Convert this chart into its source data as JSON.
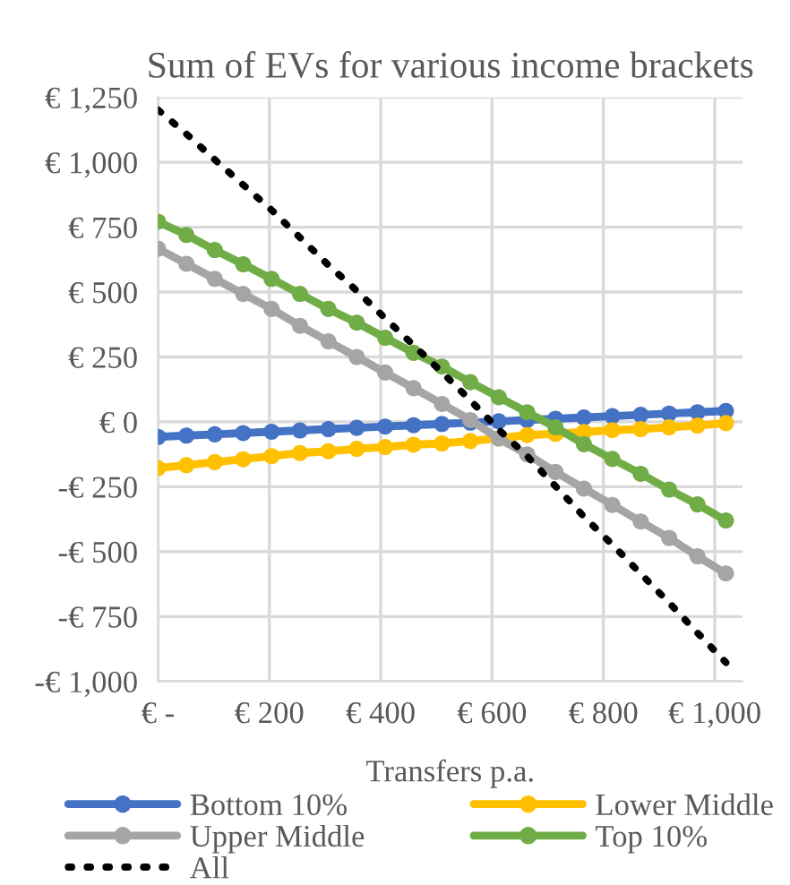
{
  "chart_data": {
    "type": "line",
    "title": "Sum of EVs for various income brackets",
    "xlabel": "Transfers p.a.",
    "x": [
      0,
      51,
      102,
      153,
      204,
      255,
      306,
      357,
      408,
      459,
      510,
      561,
      612,
      663,
      714,
      765,
      816,
      867,
      918,
      969,
      1020
    ],
    "series": [
      {
        "name": "Bottom 10%",
        "color": "#4472c4",
        "values": [
          -58,
          -53,
          -48,
          -43,
          -38,
          -33,
          -28,
          -23,
          -18,
          -13,
          -8,
          -3,
          2,
          7,
          12,
          17,
          22,
          27,
          32,
          37,
          42
        ]
      },
      {
        "name": "Lower Middle",
        "color": "#ffc000",
        "values": [
          -178,
          -167,
          -155,
          -144,
          -132,
          -120,
          -113,
          -104,
          -97,
          -88,
          -83,
          -74,
          -63,
          -51,
          -46,
          -39,
          -32,
          -28,
          -21,
          -14,
          -5
        ]
      },
      {
        "name": "Upper Middle",
        "color": "#a5a5a5",
        "values": [
          667,
          609,
          551,
          493,
          435,
          370,
          310,
          250,
          190,
          130,
          69,
          7,
          -64,
          -125,
          -193,
          -257,
          -320,
          -384,
          -447,
          -518,
          -584
        ]
      },
      {
        "name": "Top 10%",
        "color": "#70ad47",
        "values": [
          771,
          720,
          662,
          607,
          551,
          493,
          435,
          382,
          324,
          266,
          213,
          153,
          95,
          37,
          -21,
          -86,
          -143,
          -200,
          -261,
          -318,
          -380
        ]
      },
      {
        "name": "All",
        "color": "#000000",
        "marker": "none",
        "line_style": "dotted",
        "values": [
          1202,
          1109,
          1010,
          913,
          816,
          710,
          604,
          505,
          399,
          295,
          191,
          83,
          -30,
          -132,
          -248,
          -365,
          -473,
          -585,
          -697,
          -813,
          -927
        ]
      }
    ],
    "xlim": [
      0,
      1050
    ],
    "xticks": [
      {
        "value": 0,
        "label": "€ -"
      },
      {
        "value": 200,
        "label": "€ 200"
      },
      {
        "value": 400,
        "label": "€ 400"
      },
      {
        "value": 600,
        "label": "€ 600"
      },
      {
        "value": 800,
        "label": "€ 800"
      },
      {
        "value": 1000,
        "label": "€ 1,000"
      }
    ],
    "ylim": [
      -1000,
      1250
    ],
    "yticks": [
      {
        "value": -1000,
        "label": "-€ 1,000"
      },
      {
        "value": -750,
        "label": "-€ 750"
      },
      {
        "value": -500,
        "label": "-€ 500"
      },
      {
        "value": -250,
        "label": "-€ 250"
      },
      {
        "value": 0,
        "label": "€ 0"
      },
      {
        "value": 250,
        "label": "€ 250"
      },
      {
        "value": 500,
        "label": "€ 500"
      },
      {
        "value": 750,
        "label": "€ 750"
      },
      {
        "value": 1000,
        "label": "€ 1,000"
      },
      {
        "value": 1250,
        "label": "€ 1,250"
      }
    ],
    "grid": true,
    "legend": "bottom",
    "marker": "circle",
    "line_style": "solid"
  }
}
